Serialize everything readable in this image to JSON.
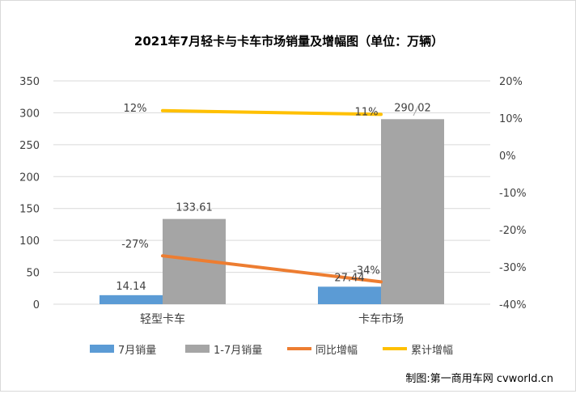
{
  "chart_data": {
    "type": "bar",
    "title": "2021年7月轻卡与卡车市场销量及增幅图（单位：万辆）",
    "categories": [
      "轻型卡车",
      "卡车市场"
    ],
    "series": [
      {
        "name": "7月销量",
        "kind": "bar",
        "axis": "left",
        "color": "#5b9bd5",
        "values": [
          14.14,
          27.44
        ],
        "labels": [
          "14.14",
          "27.44"
        ]
      },
      {
        "name": "1-7月销量",
        "kind": "bar",
        "axis": "left",
        "color": "#a5a5a5",
        "values": [
          133.61,
          290.02
        ],
        "labels": [
          "133.61",
          "290.02"
        ]
      },
      {
        "name": "同比增幅",
        "kind": "line",
        "axis": "right",
        "color": "#ed7d31",
        "values": [
          -27,
          -34
        ],
        "labels": [
          "-27%",
          "-34%"
        ]
      },
      {
        "name": "累计增幅",
        "kind": "line",
        "axis": "right",
        "color": "#ffc000",
        "values": [
          12,
          11
        ],
        "labels": [
          "12%",
          "11%"
        ]
      }
    ],
    "ylim_left": [
      0,
      350
    ],
    "yticks_left": [
      "0",
      "50",
      "100",
      "150",
      "200",
      "250",
      "300",
      "350"
    ],
    "ylim_right": [
      -40,
      20
    ],
    "yticks_right": [
      "-40%",
      "-30%",
      "-20%",
      "-10%",
      "0%",
      "10%",
      "20%"
    ],
    "grid": true,
    "legend_position": "bottom"
  },
  "footer": {
    "credit": "制图:第一商用车网 cvworld.cn"
  }
}
